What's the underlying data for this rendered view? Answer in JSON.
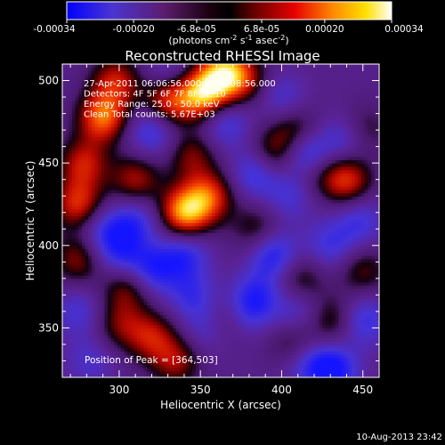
{
  "colorbar": {
    "tick_labels": [
      "-0.00034",
      "-0.00020",
      "-6.8e-05",
      "6.8e-05",
      "0.00020",
      "0.00034"
    ],
    "tick_values": [
      -0.00034,
      -0.0002,
      -6.8e-05,
      6.8e-05,
      0.0002,
      0.00034
    ],
    "range": [
      -0.00034,
      0.00034
    ],
    "units_main": "(photons cm",
    "units_exp1": "-2",
    "units_mid": " s",
    "units_exp2": "-1",
    "units_end": " asec",
    "units_exp3": "-2",
    "units_close": ")",
    "colors": [
      "#0000ff",
      "#5a2fc4",
      "#5b1d6e",
      "#000000",
      "#7f0000",
      "#e60000",
      "#ff8a00",
      "#ffe000",
      "#ffffff"
    ]
  },
  "chart_data": {
    "type": "heatmap",
    "title": "Reconstructed RHESSI Image",
    "xlabel": "Heliocentric X (arcsec)",
    "ylabel": "Heliocentric Y (arcsec)",
    "xlim": [
      265,
      460
    ],
    "ylim": [
      320,
      510
    ],
    "xticks": [
      300,
      350,
      400,
      450
    ],
    "yticks": [
      350,
      400,
      450,
      500
    ],
    "xtick_labels": [
      "300",
      "350",
      "400",
      "450"
    ],
    "ytick_labels": [
      "350",
      "400",
      "450",
      "500"
    ],
    "info_lines": [
      "27-Apr-2011 06:06:56.000 to 06:08:56.000",
      "Detectors: 4F 5F 6F 7F 8F 9F 10",
      "Energy Range: 25.0 - 50.0 keV",
      "Clean     Total counts: 5.67E+03"
    ],
    "peak_label": "Position of Peak = [364,503]",
    "peak": [
      364,
      503
    ],
    "sources": [
      {
        "x": 352,
        "y": 492,
        "v": 1.0
      },
      {
        "x": 365,
        "y": 505,
        "v": 0.9
      },
      {
        "x": 330,
        "y": 488,
        "v": 0.75
      },
      {
        "x": 290,
        "y": 478,
        "v": 0.85
      },
      {
        "x": 298,
        "y": 500,
        "v": 0.6
      },
      {
        "x": 345,
        "y": 455,
        "v": 0.45
      },
      {
        "x": 340,
        "y": 420,
        "v": 0.95
      },
      {
        "x": 355,
        "y": 430,
        "v": 0.7
      },
      {
        "x": 310,
        "y": 440,
        "v": 0.55
      },
      {
        "x": 275,
        "y": 425,
        "v": 0.7
      },
      {
        "x": 278,
        "y": 450,
        "v": 0.6
      },
      {
        "x": 395,
        "y": 455,
        "v": 0.55
      },
      {
        "x": 408,
        "y": 470,
        "v": 0.45
      },
      {
        "x": 378,
        "y": 500,
        "v": 0.4
      },
      {
        "x": 420,
        "y": 445,
        "v": 0.35
      },
      {
        "x": 440,
        "y": 440,
        "v": 0.7
      },
      {
        "x": 450,
        "y": 470,
        "v": 0.4
      },
      {
        "x": 275,
        "y": 392,
        "v": 0.5
      },
      {
        "x": 305,
        "y": 375,
        "v": 0.5
      },
      {
        "x": 320,
        "y": 345,
        "v": 0.55
      },
      {
        "x": 300,
        "y": 352,
        "v": 0.4
      },
      {
        "x": 335,
        "y": 330,
        "v": 0.5
      },
      {
        "x": 365,
        "y": 355,
        "v": 0.35
      },
      {
        "x": 385,
        "y": 410,
        "v": 0.4
      },
      {
        "x": 412,
        "y": 380,
        "v": 0.4
      },
      {
        "x": 408,
        "y": 340,
        "v": 0.45
      },
      {
        "x": 432,
        "y": 355,
        "v": 0.45
      },
      {
        "x": 450,
        "y": 385,
        "v": 0.4
      },
      {
        "x": 340,
        "y": 395,
        "v": -0.5
      },
      {
        "x": 320,
        "y": 385,
        "v": -0.55
      },
      {
        "x": 290,
        "y": 410,
        "v": -0.4
      },
      {
        "x": 310,
        "y": 415,
        "v": -0.45
      },
      {
        "x": 385,
        "y": 445,
        "v": -0.55
      },
      {
        "x": 405,
        "y": 430,
        "v": -0.35
      },
      {
        "x": 415,
        "y": 455,
        "v": -0.7
      },
      {
        "x": 440,
        "y": 465,
        "v": -0.45
      },
      {
        "x": 395,
        "y": 395,
        "v": -0.6
      },
      {
        "x": 430,
        "y": 400,
        "v": -0.4
      },
      {
        "x": 345,
        "y": 370,
        "v": -0.4
      },
      {
        "x": 355,
        "y": 350,
        "v": -0.35
      },
      {
        "x": 385,
        "y": 370,
        "v": -0.4
      },
      {
        "x": 378,
        "y": 360,
        "v": -0.35
      },
      {
        "x": 410,
        "y": 360,
        "v": -0.35
      },
      {
        "x": 432,
        "y": 325,
        "v": -0.65
      },
      {
        "x": 415,
        "y": 330,
        "v": -0.45
      },
      {
        "x": 450,
        "y": 355,
        "v": -0.5
      },
      {
        "x": 448,
        "y": 415,
        "v": -0.4
      },
      {
        "x": 275,
        "y": 360,
        "v": -0.35
      },
      {
        "x": 300,
        "y": 395,
        "v": -0.45
      },
      {
        "x": 320,
        "y": 470,
        "v": -0.5
      },
      {
        "x": 365,
        "y": 475,
        "v": -0.45
      },
      {
        "x": 330,
        "y": 505,
        "v": -0.3
      },
      {
        "x": 400,
        "y": 490,
        "v": -0.35
      },
      {
        "x": 282,
        "y": 330,
        "v": -0.3
      }
    ]
  },
  "footer": {
    "timestamp": "10-Aug-2013 23:42"
  }
}
